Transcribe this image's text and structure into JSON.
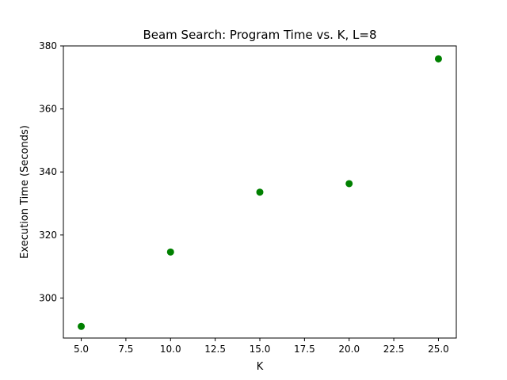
{
  "chart_data": {
    "type": "scatter",
    "title": "Beam Search: Program Time vs. K, L=8",
    "xlabel": "K",
    "ylabel": "Execution Time (Seconds)",
    "xlim": [
      4.0,
      26.0
    ],
    "ylim": [
      287.3,
      380.0
    ],
    "x_ticks": [
      "5.0",
      "7.5",
      "10.0",
      "12.5",
      "15.0",
      "17.5",
      "20.0",
      "22.5",
      "25.0"
    ],
    "y_ticks": [
      "300",
      "320",
      "340",
      "360",
      "380"
    ],
    "grid": false,
    "marker_color": "#008000",
    "series": [
      {
        "x": [
          5,
          10,
          15,
          20,
          25
        ],
        "y": [
          291.0,
          314.6,
          333.6,
          336.3,
          375.9
        ]
      }
    ]
  }
}
